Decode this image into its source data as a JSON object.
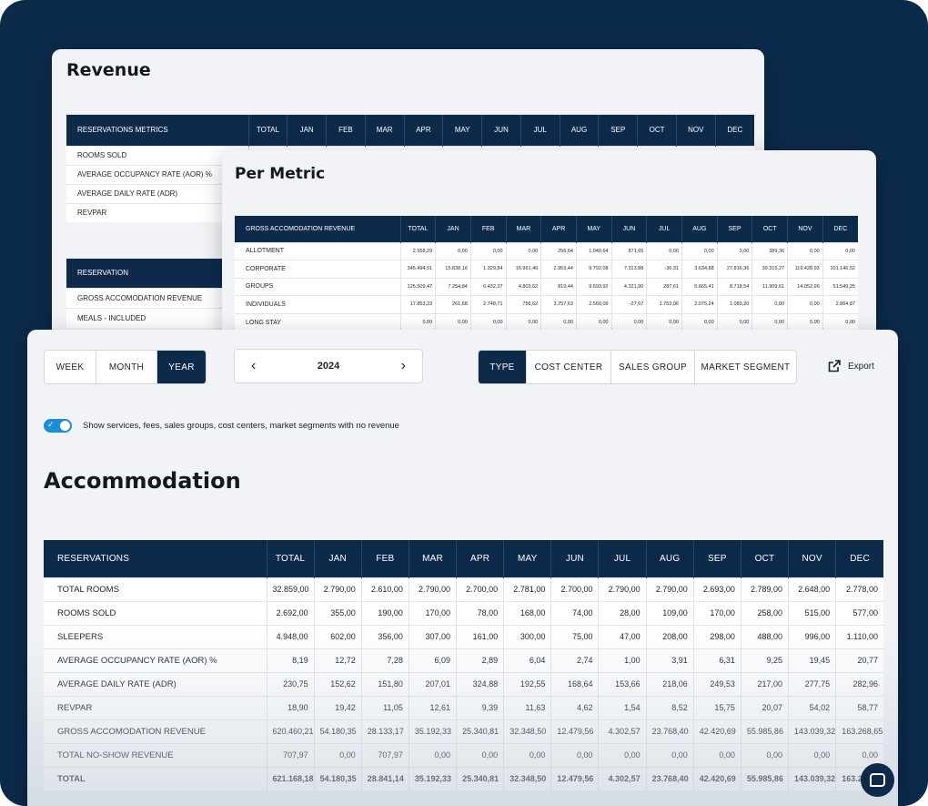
{
  "revenue_card": {
    "title": "Revenue",
    "table1": {
      "header": "RESERVATIONS METRICS",
      "columns": [
        "TOTAL",
        "JAN",
        "FEB",
        "MAR",
        "APR",
        "MAY",
        "JUN",
        "JUL",
        "AUG",
        "SEP",
        "OCT",
        "NOV",
        "DEC"
      ],
      "rows": [
        "ROOMS SOLD",
        "AVERAGE OCCUPANCY RATE (AOR) %",
        "AVERAGE DAILY RATE (ADR)",
        "REVPAR"
      ]
    },
    "table2": {
      "header": "RESERVATION",
      "rows": [
        "GROSS ACCOMODATION REVENUE",
        "MEALS - INCLUDED"
      ]
    }
  },
  "metric_card": {
    "title": "Per Metric",
    "header": "GROSS ACCOMODATION REVENUE",
    "columns": [
      "TOTAL",
      "JAN",
      "FEB",
      "MAR",
      "APR",
      "MAY",
      "JUN",
      "JUL",
      "AUG",
      "SEP",
      "OCT",
      "NOV",
      "DEC"
    ],
    "rows": [
      {
        "label": "ALLOTMENT",
        "values": [
          "2.558,29",
          "0,00",
          "0,00",
          "0,00",
          "256,64",
          "1.040,64",
          "871,65",
          "0,00",
          "0,00",
          "0,00",
          "389,36",
          "0,00",
          "0,00"
        ]
      },
      {
        "label": "CORPORATE",
        "values": [
          "345.494,51",
          "15.838,16",
          "1.329,84",
          "16.961,46",
          "2.953,44",
          "9.792,08",
          "7.313,88",
          "-36,31",
          "3.634,88",
          "27.816,36",
          "39.315,27",
          "119.428,93",
          "101.146,52"
        ]
      },
      {
        "label": "GROUPS",
        "values": [
          "125.509,47",
          "7.254,84",
          "6.432,37",
          "4.803,62",
          "819,44",
          "9.693,92",
          "4.321,90",
          "287,61",
          "5.665,41",
          "8.718,54",
          "11.909,61",
          "14.052,96",
          "51.549,25"
        ]
      },
      {
        "label": "INDIVIDUALS",
        "values": [
          "17.853,23",
          "261,68",
          "2.748,71",
          "756,62",
          "3.757,63",
          "2.560,09",
          "-27,67",
          "1.753,06",
          "2.075,24",
          "1.083,20",
          "0,00",
          "0,00",
          "2.864,87"
        ]
      },
      {
        "label": "LONG STAY",
        "values": [
          "0,00",
          "0,00",
          "0,00",
          "0,00",
          "0,00",
          "0,00",
          "0,00",
          "0,00",
          "0,00",
          "0,00",
          "0,00",
          "0,00",
          "0,00"
        ]
      }
    ]
  },
  "main_card": {
    "period_tabs": [
      "WEEK",
      "MONTH",
      "YEAR"
    ],
    "active_period": "YEAR",
    "year": "2024",
    "group_tabs": [
      "TYPE",
      "COST CENTER",
      "SALES GROUP",
      "MARKET SEGMENT"
    ],
    "active_group": "TYPE",
    "export_label": "Export",
    "toggle_label": "Show services, fees, sales groups, cost centers, market segments with no revenue",
    "toggle_on": true,
    "section_title": "Accommodation",
    "table": {
      "header": "RESERVATIONS",
      "columns": [
        "TOTAL",
        "JAN",
        "FEB",
        "MAR",
        "APR",
        "MAY",
        "JUN",
        "JUL",
        "AUG",
        "SEP",
        "OCT",
        "NOV",
        "DEC"
      ],
      "rows": [
        {
          "label": "TOTAL ROOMS",
          "values": [
            "32.859,00",
            "2.790,00",
            "2.610,00",
            "2.790,00",
            "2.700,00",
            "2.781,00",
            "2.700,00",
            "2.790,00",
            "2.790,00",
            "2.693,00",
            "2.789,00",
            "2.648,00",
            "2.778,00"
          ]
        },
        {
          "label": "ROOMS SOLD",
          "values": [
            "2.692,00",
            "355,00",
            "190,00",
            "170,00",
            "78,00",
            "168,00",
            "74,00",
            "28,00",
            "109,00",
            "170,00",
            "258,00",
            "515,00",
            "577,00"
          ]
        },
        {
          "label": "SLEEPERS",
          "values": [
            "4.948,00",
            "602,00",
            "356,00",
            "307,00",
            "161,00",
            "300,00",
            "75,00",
            "47,00",
            "208,00",
            "298,00",
            "488,00",
            "996,00",
            "1.110,00"
          ]
        },
        {
          "label": "AVERAGE OCCUPANCY RATE (AOR) %",
          "values": [
            "8,19",
            "12,72",
            "7,28",
            "6,09",
            "2,89",
            "6,04",
            "2,74",
            "1,00",
            "3,91",
            "6,31",
            "9,25",
            "19,45",
            "20,77"
          ]
        },
        {
          "label": "AVERAGE DAILY RATE (ADR)",
          "values": [
            "230,75",
            "152,62",
            "151,80",
            "207,01",
            "324,88",
            "192,55",
            "168,64",
            "153,66",
            "218,06",
            "249,53",
            "217,00",
            "277,75",
            "282,96"
          ]
        },
        {
          "label": "REVPAR",
          "values": [
            "18,90",
            "19,42",
            "11,05",
            "12,61",
            "9,39",
            "11,63",
            "4,62",
            "1,54",
            "8,52",
            "15,75",
            "20,07",
            "54,02",
            "58,77"
          ]
        },
        {
          "label": "GROSS ACCOMODATION REVENUE",
          "values": [
            "620.460,21",
            "54.180,35",
            "28.133,17",
            "35.192,33",
            "25.340,81",
            "32.348,50",
            "12.479,56",
            "4.302,57",
            "23.768,40",
            "42.420,69",
            "55.985,86",
            "143.039,32",
            "163.268,65"
          ]
        },
        {
          "label": "TOTAL NO-SHOW REVENUE",
          "values": [
            "707,97",
            "0,00",
            "707,97",
            "0,00",
            "0,00",
            "0,00",
            "0,00",
            "0,00",
            "0,00",
            "0,00",
            "0,00",
            "0,00",
            "0,00"
          ]
        },
        {
          "label": "TOTAL",
          "values": [
            "621.168,18",
            "54.180,35",
            "28.841,14",
            "35.192,33",
            "25.340,81",
            "32.348,50",
            "12.479,56",
            "4.302,57",
            "23.768,40",
            "42.420,69",
            "55.985,86",
            "143.039,32",
            "163.268,65"
          ],
          "is_total": true
        }
      ]
    }
  },
  "icons": {
    "prev": "chevron-left-icon",
    "next": "chevron-right-icon",
    "export": "external-link-icon",
    "chat": "chat-icon"
  },
  "colors": {
    "background": "#0c2a4a",
    "header": "#0e2a4b",
    "accent": "#1b8ed6"
  }
}
